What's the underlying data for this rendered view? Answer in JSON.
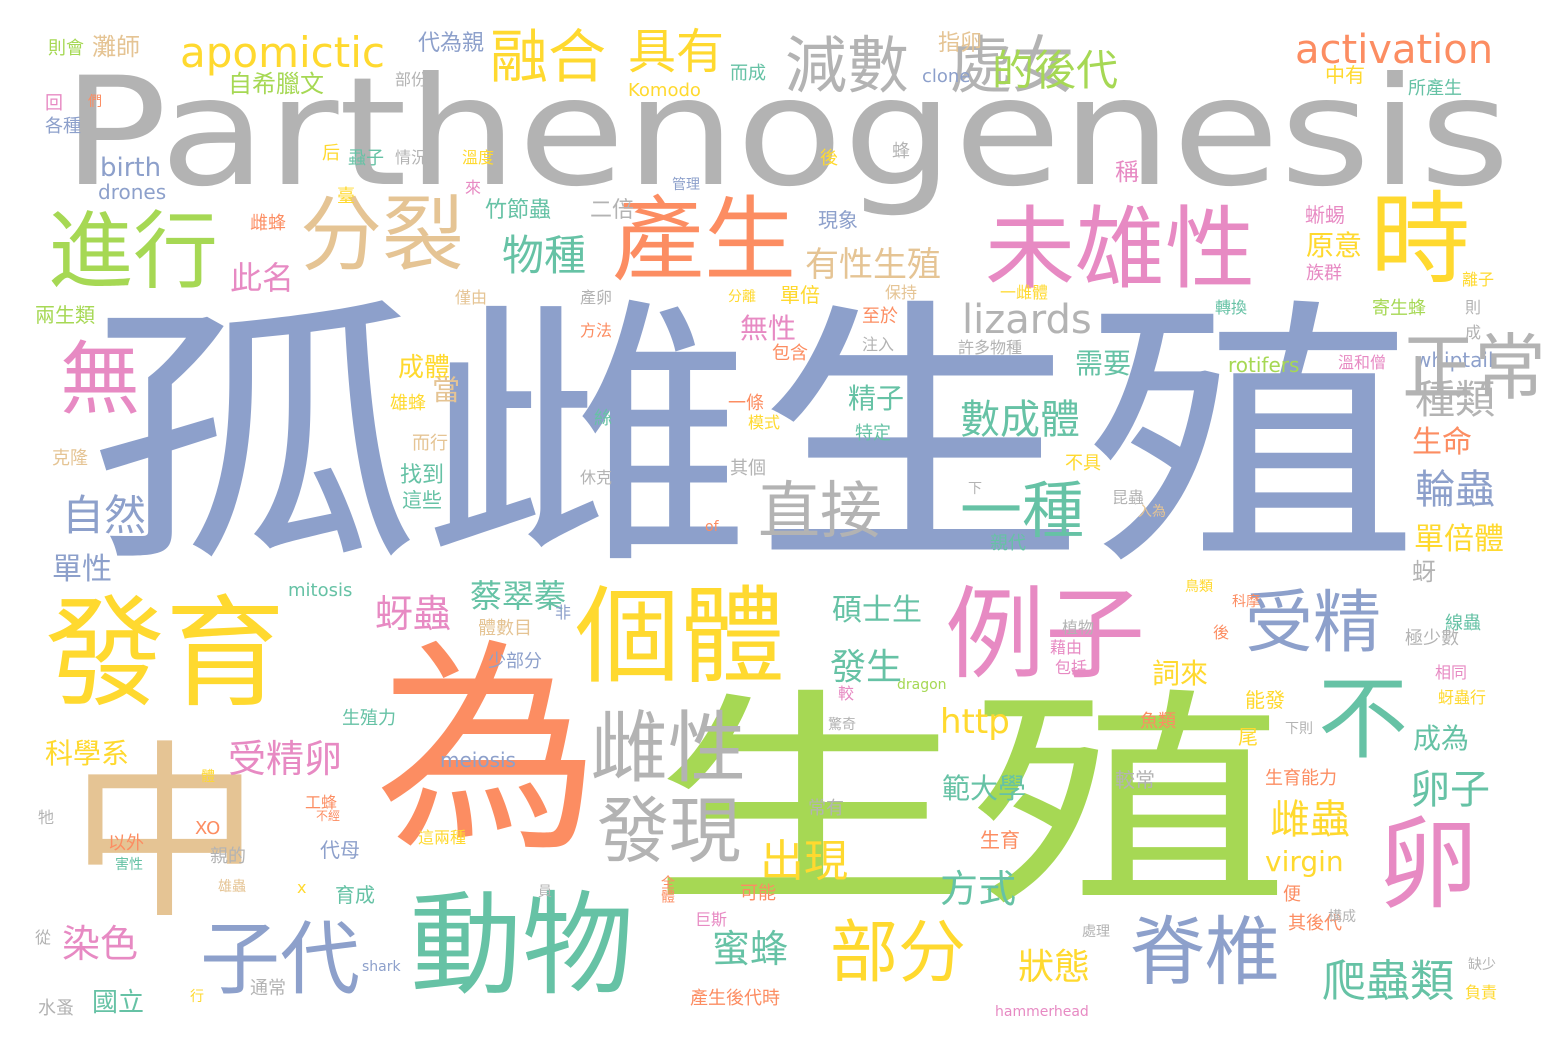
{
  "colors": {
    "background": "#ffffff",
    "gray": "#b3b3b3",
    "blue": "#8da0cb",
    "green": "#a6d854",
    "orange": "#fc8d62",
    "yellow": "#ffd92f",
    "teal": "#66c2a5",
    "pink": "#e78ac3",
    "tan": "#e5c494"
  },
  "words": [
    "Parthenogenesis",
    "孤雌生殖",
    "生殖",
    "為",
    "中",
    "發育",
    "動物",
    "個體",
    "例子",
    "產生",
    "時",
    "未雄性",
    "進行",
    "分裂",
    "無",
    "子代",
    "不",
    "卵",
    "受精",
    "雌性",
    "發現",
    "脊椎",
    "部分",
    "減數",
    "處女",
    "融合",
    "具有",
    "的後代",
    "直接",
    "一種",
    "apomictic",
    "activation",
    "lizards",
    "自然",
    "物種",
    "有性生殖",
    "數成體",
    "出現",
    "爬蟲類",
    "卵子",
    "雌蟲",
    "輪蟲",
    "種類",
    "受精卵",
    "染色",
    "蚜蟲",
    "蜜蜂",
    "狀態",
    "方式",
    "http",
    "蔡翠蓁",
    "發生",
    "碩士生",
    "原意",
    "生命",
    "單倍體",
    "此名",
    "需要",
    "無性",
    "精子",
    "詞來",
    "成為",
    "單性",
    "科學系",
    "範大學",
    "國立",
    "virgin",
    "自希臘文",
    "代為親",
    "灘師",
    "則會",
    "指卵",
    "而成",
    "中有",
    "所產生",
    "clone",
    "Komodo",
    "birth",
    "drones",
    "雌蜂",
    "竹節蟲",
    "二倍",
    "現象",
    "稱",
    "蜥蜴",
    "族群",
    "離子",
    "則",
    "成",
    "whiptail",
    "rotifers",
    "溫和僧",
    "寄生蜂",
    "轉換",
    "一雌體",
    "保持",
    "單倍",
    "分離",
    "產卵",
    "僅由",
    "兩生類",
    "方法",
    "至於",
    "注入",
    "許多物種",
    "包含",
    "成體",
    "雄蜂",
    "一條",
    "模式",
    "特定",
    "絲",
    "而行",
    "克隆",
    "其個",
    "休克",
    "找到",
    "這些",
    "下",
    "不具",
    "昆蟲",
    "入為",
    "親代",
    "mitosis",
    "非",
    "體數目",
    "少部分",
    "植物",
    "包括",
    "極少數",
    "相同",
    "線蟲",
    "科摩",
    "鳥類",
    "後",
    "dragon",
    "生殖力",
    "meiosis",
    "魚類",
    "能發",
    "尾",
    "下則",
    "蚜蟲行",
    "較常",
    "生育能力",
    "常有",
    "工蜂",
    "生育",
    "代母",
    "育成",
    "可能",
    "XO",
    "以外",
    "害性",
    "親的",
    "雄蟲",
    "巨斯",
    "全體",
    "其後代",
    "便",
    "處理",
    "構成",
    "缺少",
    "負責",
    "產生後代時",
    "hammerhead",
    "shark",
    "通常",
    "水蚤",
    "從",
    "牠",
    "體",
    "行",
    "x",
    "員",
    "驚奇",
    "較",
    "蝨子",
    "情況",
    "溫度",
    "來",
    "管理",
    "後",
    "蜂",
    "部份",
    "各種",
    "回",
    "們",
    "正常",
    "of",
    "藉由",
    "蚜",
    "不經",
    "這兩種",
    "當",
    "臺",
    "后",
    "蟻子"
  ]
}
